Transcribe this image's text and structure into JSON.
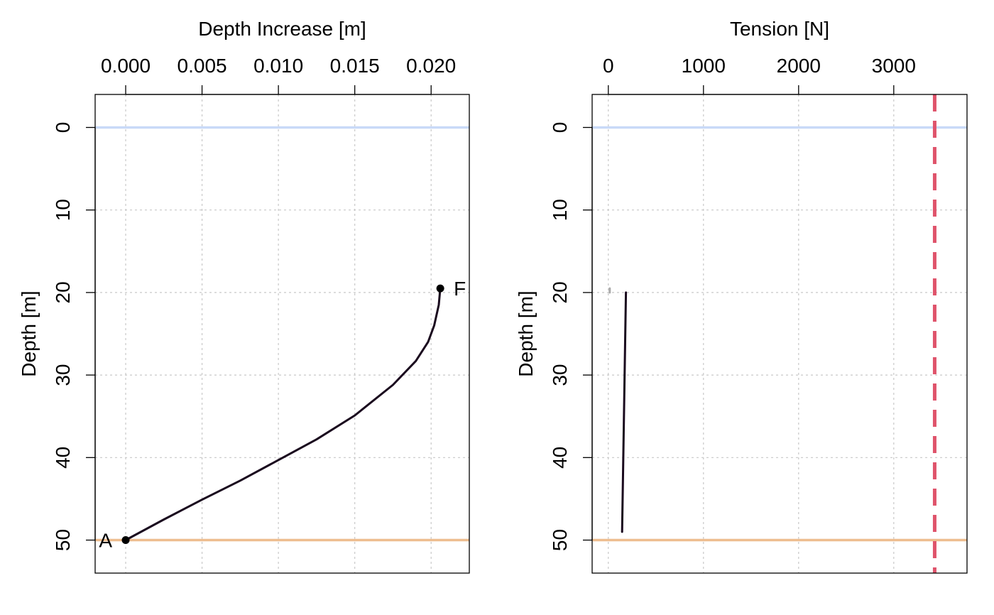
{
  "chart_data": [
    {
      "type": "line",
      "xlabel": "Depth Increase [m]",
      "ylabel": "Depth [m]",
      "xlim": [
        -0.002,
        0.0225
      ],
      "ylim": [
        54,
        -4
      ],
      "y_reversed": true,
      "x_ticks": [
        0.0,
        0.005,
        0.01,
        0.015,
        0.02
      ],
      "x_tick_labels": [
        "0.000",
        "0.005",
        "0.010",
        "0.015",
        "0.020"
      ],
      "y_ticks": [
        0,
        10,
        20,
        30,
        40,
        50
      ],
      "y_tick_labels": [
        "0",
        "10",
        "20",
        "30",
        "40",
        "50"
      ],
      "grid": true,
      "reference_lines": [
        {
          "orientation": "horizontal",
          "value": 0,
          "color": "#c9daf8"
        },
        {
          "orientation": "horizontal",
          "value": 50,
          "color": "#eebd8f"
        }
      ],
      "series": [
        {
          "color": "#1a0a1e",
          "points": [
            {
              "x": 0.0,
              "y": 50
            },
            {
              "x": 0.0025,
              "y": 47.5
            },
            {
              "x": 0.005,
              "y": 45.1
            },
            {
              "x": 0.0075,
              "y": 42.8
            },
            {
              "x": 0.01,
              "y": 40.3
            },
            {
              "x": 0.0125,
              "y": 37.8
            },
            {
              "x": 0.015,
              "y": 34.9
            },
            {
              "x": 0.0175,
              "y": 31.2
            },
            {
              "x": 0.019,
              "y": 28.3
            },
            {
              "x": 0.0198,
              "y": 26.0
            },
            {
              "x": 0.0202,
              "y": 24.0
            },
            {
              "x": 0.0205,
              "y": 21.5
            },
            {
              "x": 0.0206,
              "y": 19.5
            }
          ]
        }
      ],
      "markers": [
        {
          "label": "A",
          "x": 0.0,
          "y": 50,
          "side": "left"
        },
        {
          "label": "F",
          "x": 0.0206,
          "y": 19.5,
          "side": "right"
        }
      ]
    },
    {
      "type": "line",
      "xlabel": "Tension [N]",
      "ylabel": "Depth [m]",
      "xlim": [
        -170,
        3770
      ],
      "ylim": [
        54,
        -4
      ],
      "y_reversed": true,
      "x_ticks": [
        0,
        1000,
        2000,
        3000
      ],
      "x_tick_labels": [
        "0",
        "1000",
        "2000",
        "3000"
      ],
      "y_ticks": [
        0,
        10,
        20,
        30,
        40,
        50
      ],
      "y_tick_labels": [
        "0",
        "10",
        "20",
        "30",
        "40",
        "50"
      ],
      "grid": true,
      "reference_lines": [
        {
          "orientation": "horizontal",
          "value": 0,
          "color": "#c9daf8"
        },
        {
          "orientation": "horizontal",
          "value": 50,
          "color": "#eebd8f"
        },
        {
          "orientation": "vertical",
          "value": 3430,
          "color": "#df536b",
          "dashed": true
        }
      ],
      "series": [
        {
          "color": "#1a0a1e",
          "points": [
            {
              "x": 145,
              "y": 49.0
            },
            {
              "x": 185,
              "y": 20.0
            }
          ]
        },
        {
          "color": "#aaaaaa",
          "points": [
            {
              "x": 15,
              "y": 19.5
            },
            {
              "x": 15,
              "y": 20.0
            }
          ]
        }
      ],
      "markers": []
    }
  ]
}
